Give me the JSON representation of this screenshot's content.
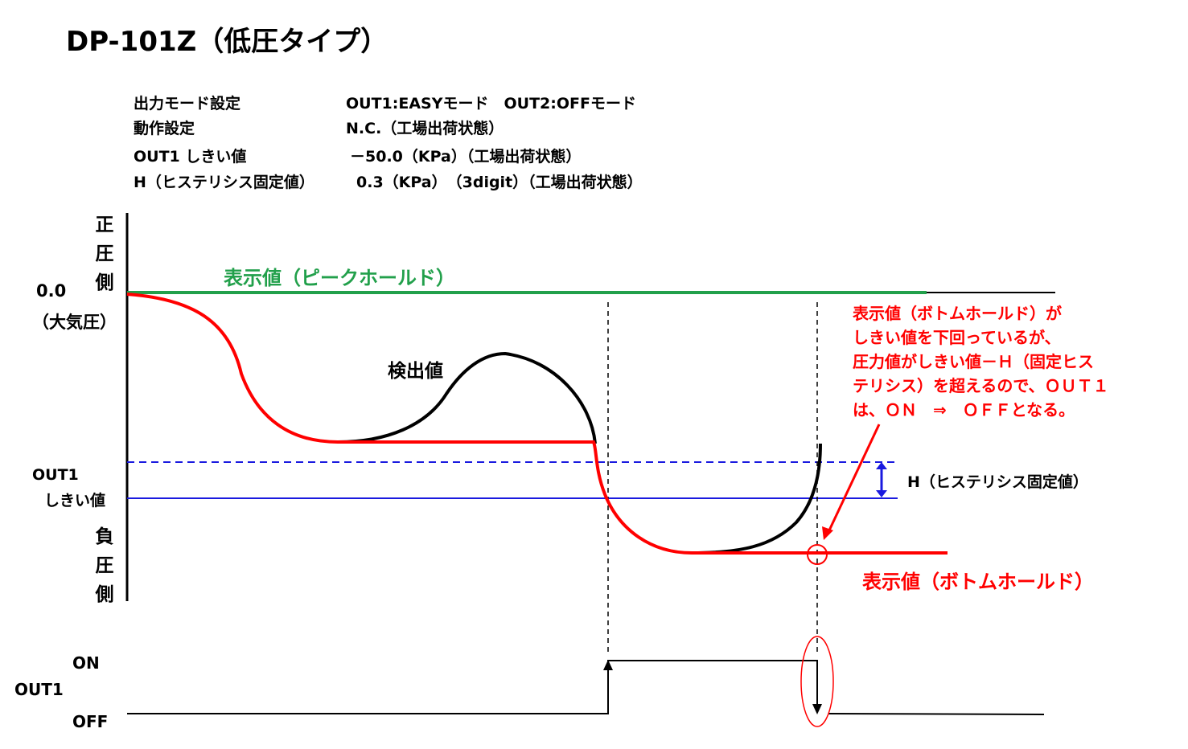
{
  "title": "DP-101Z（低圧タイプ）",
  "settings": [
    {
      "label": "出力モード設定",
      "value": "OUT1:EASYモード　OUT2:OFFモード"
    },
    {
      "label": "動作設定",
      "value": "N.C.（工場出荷状態）"
    },
    {
      "label": "OUT1 しきい値",
      "value": "－50.0（KPa）（工場出荷状態）"
    },
    {
      "label": "H（ヒステリシス固定値）",
      "value": "0.3（KPa）　（3digit）（工場出荷状態）"
    }
  ],
  "axis": {
    "positive_side": "正圧側",
    "negative_side": "負圧側",
    "zero_value": "0.0",
    "zero_note": "（大気圧）",
    "threshold_line1": "OUT1",
    "threshold_line2": "しきい値"
  },
  "labels": {
    "peak_hold": "表示値（ピークホールド）",
    "detected": "検出値",
    "bottom_hold": "表示値（ボトムホールド）",
    "hysteresis": "H（ヒステリシス固定値）"
  },
  "annotation": [
    "表示値（ボトムホールド）が",
    "しきい値を下回っているが、",
    "圧力値がしきい値－Ｈ（固定ヒス",
    "テリシス）を超えるので、ＯＵＴ１",
    "は、ＯＮ　⇒　ＯＦＦとなる。"
  ],
  "output": {
    "on": "ON",
    "signal": "OUT1",
    "off": "OFF"
  },
  "colors": {
    "peak": "#22a04b",
    "bottom": "#ff0000",
    "threshold": "#1a1adf",
    "detected": "#000000"
  }
}
